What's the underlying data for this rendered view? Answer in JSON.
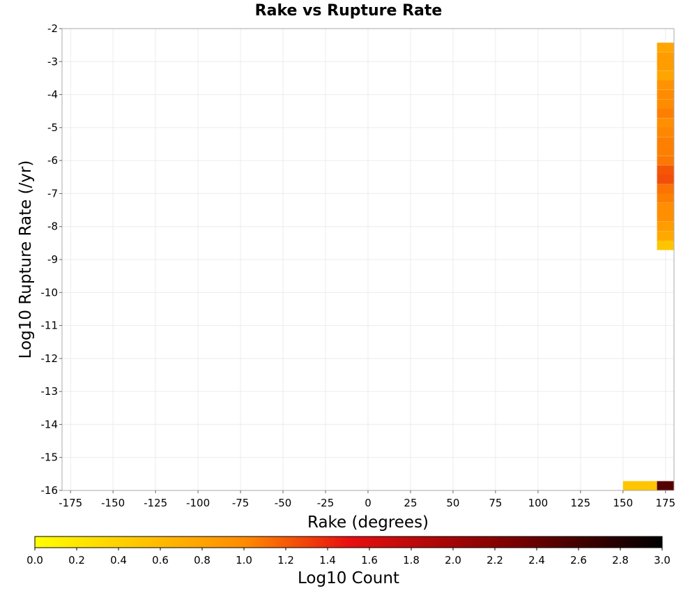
{
  "chart_data": {
    "type": "heatmap",
    "title": "Rake vs Rupture Rate",
    "xlabel": "Rake (degrees)",
    "ylabel": "Log10 Rupture Rate (/yr)",
    "xlim": [
      -180,
      180
    ],
    "ylim": [
      -16,
      -2
    ],
    "xticks": [
      -175,
      -150,
      -125,
      -100,
      -75,
      -50,
      -25,
      0,
      25,
      50,
      75,
      100,
      125,
      150,
      175
    ],
    "yticks": [
      -2,
      -3,
      -4,
      -5,
      -6,
      -7,
      -8,
      -9,
      -10,
      -11,
      -12,
      -13,
      -14,
      -15,
      -16
    ],
    "colorbar": {
      "label": "Log10 Count",
      "min": 0.0,
      "max": 3.0,
      "ticks": [
        "0.0",
        "0.2",
        "0.4",
        "0.6",
        "0.8",
        "1.0",
        "1.2",
        "1.4",
        "1.6",
        "1.8",
        "2.0",
        "2.2",
        "2.4",
        "2.6",
        "2.8",
        "3.0"
      ]
    },
    "cell_height": 0.2857,
    "cells": [
      {
        "x0": 170,
        "x1": 180,
        "y": -2.57,
        "value": 0.78
      },
      {
        "x0": 170,
        "x1": 180,
        "y": -2.86,
        "value": 0.85
      },
      {
        "x0": 170,
        "x1": 180,
        "y": -3.14,
        "value": 0.85
      },
      {
        "x0": 170,
        "x1": 180,
        "y": -3.43,
        "value": 0.78
      },
      {
        "x0": 170,
        "x1": 180,
        "y": -3.71,
        "value": 0.95
      },
      {
        "x0": 170,
        "x1": 180,
        "y": -4.0,
        "value": 1.0
      },
      {
        "x0": 170,
        "x1": 180,
        "y": -4.29,
        "value": 1.0
      },
      {
        "x0": 170,
        "x1": 180,
        "y": -4.57,
        "value": 1.05
      },
      {
        "x0": 170,
        "x1": 180,
        "y": -4.86,
        "value": 0.98
      },
      {
        "x0": 170,
        "x1": 180,
        "y": -5.14,
        "value": 1.02
      },
      {
        "x0": 170,
        "x1": 180,
        "y": -5.43,
        "value": 1.05
      },
      {
        "x0": 170,
        "x1": 180,
        "y": -5.71,
        "value": 1.05
      },
      {
        "x0": 170,
        "x1": 180,
        "y": -6.0,
        "value": 1.08
      },
      {
        "x0": 170,
        "x1": 180,
        "y": -6.29,
        "value": 1.22
      },
      {
        "x0": 170,
        "x1": 180,
        "y": -6.57,
        "value": 1.25
      },
      {
        "x0": 170,
        "x1": 180,
        "y": -6.86,
        "value": 1.1
      },
      {
        "x0": 170,
        "x1": 180,
        "y": -7.14,
        "value": 1.05
      },
      {
        "x0": 170,
        "x1": 180,
        "y": -7.43,
        "value": 0.98
      },
      {
        "x0": 170,
        "x1": 180,
        "y": -7.71,
        "value": 0.98
      },
      {
        "x0": 170,
        "x1": 180,
        "y": -8.0,
        "value": 0.85
      },
      {
        "x0": 170,
        "x1": 180,
        "y": -8.29,
        "value": 0.75
      },
      {
        "x0": 170,
        "x1": 180,
        "y": -8.57,
        "value": 0.5
      },
      {
        "x0": 150,
        "x1": 170,
        "y": -15.86,
        "value": 0.5
      },
      {
        "x0": 170,
        "x1": 180,
        "y": -15.86,
        "value": 2.5
      }
    ]
  }
}
